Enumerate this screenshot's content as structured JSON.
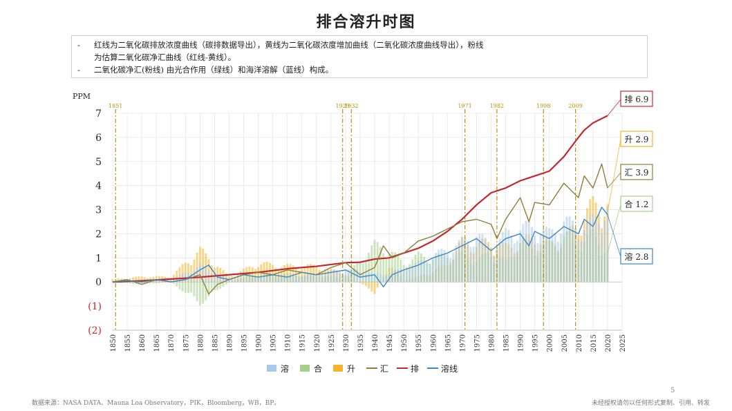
{
  "title": "排合溶升时图",
  "notes": [
    "红线为二氧化碳排放浓度曲线（碳排数据导出），黄线为二氧化碳浓度增加曲线（二氧化碳浓度曲线导出），粉线",
    "为估算二氧化碳净汇曲线（红线-黄线）。",
    "二氧化碳净汇(粉线) 由光合作用（绿线）和海洋溶解（蓝线）构成。"
  ],
  "note_bullets": [
    "-",
    "",
    "-"
  ],
  "footer_source": "数据来源：NASA DATA、Mauna Loa Observatory，PIK，Bloomberg，WB，BP。",
  "footer_copyright": "未经授权请勿以任何形式复制、引用、转发",
  "page_number": "5",
  "colors": {
    "red": "#c0282d",
    "yellow": "#f3b52a",
    "olive": "#8f7d3a",
    "green": "#a6cf8a",
    "blue_bar": "#a9c9e8",
    "blue_line": "#3b86c6",
    "event_line": "#b8920f",
    "negative_tick": "#c0282d"
  },
  "chart_data": {
    "type": "bar",
    "ylabel": "PPM",
    "ylim": [
      -2,
      7
    ],
    "xlim": [
      1850,
      2025
    ],
    "y_ticks": [
      "7",
      "6",
      "5",
      "4",
      "3",
      "2",
      "1",
      "0",
      "(1)",
      "(2)"
    ],
    "y_tick_values": [
      7,
      6,
      5,
      4,
      3,
      2,
      1,
      0,
      -1,
      -2
    ],
    "x_ticks": [
      "1850",
      "1855",
      "1860",
      "1865",
      "1870",
      "1875",
      "1880",
      "1885",
      "1890",
      "1895",
      "1900",
      "1905",
      "1910",
      "1915",
      "1920",
      "1925",
      "1930",
      "1935",
      "1940",
      "1945",
      "1950",
      "1955",
      "1960",
      "1965",
      "1970",
      "1975",
      "1980",
      "1985",
      "1990",
      "1995",
      "2000",
      "2005",
      "2010",
      "2015",
      "2020",
      "2025"
    ],
    "grid": true,
    "legend_position": "bottom",
    "legend": [
      {
        "label": "溶",
        "kind": "bar",
        "color": "#a9c9e8"
      },
      {
        "label": "合",
        "kind": "bar",
        "color": "#a6cf8a"
      },
      {
        "label": "升",
        "kind": "bar",
        "color": "#f3b52a"
      },
      {
        "label": "汇",
        "kind": "line",
        "color": "#8f7d3a"
      },
      {
        "label": "排",
        "kind": "line",
        "color": "#c0282d"
      },
      {
        "label": "溶线",
        "kind": "line",
        "color": "#3b86c6"
      }
    ],
    "event_years": [
      1851,
      1929,
      1932,
      1971,
      1982,
      1998,
      2009
    ],
    "event_labels": [
      "1851",
      "1929",
      "1932",
      "1971",
      "1982",
      "1998",
      "2009"
    ],
    "end_labels": [
      {
        "text": "排 6.9",
        "value": 6.9,
        "color": "#c0282d"
      },
      {
        "text": "升 2.9",
        "value": 2.9,
        "color": "#f3b52a"
      },
      {
        "text": "汇 3.9",
        "value": 3.9,
        "color": "#8f7d3a"
      },
      {
        "text": "合 1.2",
        "value": 1.2,
        "color": "#a6cf8a"
      },
      {
        "text": "溶 2.8",
        "value": 2.8,
        "color": "#3b86c6"
      }
    ],
    "series": [
      {
        "name": "排",
        "type": "line",
        "color": "#c0282d",
        "x": [
          1850,
          1860,
          1870,
          1880,
          1890,
          1900,
          1910,
          1920,
          1930,
          1935,
          1940,
          1945,
          1950,
          1955,
          1960,
          1965,
          1970,
          1975,
          1980,
          1985,
          1990,
          1995,
          2000,
          2005,
          2010,
          2012,
          2015,
          2020
        ],
        "y": [
          0.0,
          0.05,
          0.12,
          0.2,
          0.3,
          0.4,
          0.55,
          0.65,
          0.8,
          0.82,
          0.95,
          1.0,
          1.2,
          1.4,
          1.7,
          2.1,
          2.6,
          3.2,
          3.7,
          3.9,
          4.2,
          4.4,
          4.6,
          5.2,
          6.0,
          6.3,
          6.6,
          6.9
        ]
      },
      {
        "name": "汇",
        "type": "line",
        "color": "#8f7d3a",
        "x": [
          1850,
          1855,
          1860,
          1865,
          1870,
          1875,
          1880,
          1883,
          1886,
          1890,
          1895,
          1900,
          1905,
          1910,
          1915,
          1920,
          1925,
          1930,
          1935,
          1940,
          1943,
          1946,
          1950,
          1955,
          1960,
          1965,
          1970,
          1975,
          1980,
          1982,
          1985,
          1990,
          1993,
          1995,
          2000,
          2005,
          2010,
          2012,
          2015,
          2018,
          2020
        ],
        "y": [
          0.0,
          0.1,
          -0.1,
          0.1,
          0.0,
          0.1,
          0.3,
          -0.5,
          -0.1,
          0.1,
          0.3,
          0.4,
          0.3,
          0.5,
          0.4,
          0.3,
          0.6,
          0.8,
          0.3,
          0.6,
          1.5,
          1.0,
          1.2,
          1.7,
          1.9,
          2.2,
          2.5,
          2.6,
          2.4,
          1.8,
          2.6,
          3.5,
          2.5,
          3.3,
          3.2,
          4.1,
          3.5,
          4.4,
          3.9,
          4.9,
          3.9
        ]
      },
      {
        "name": "溶线",
        "type": "line",
        "color": "#3b86c6",
        "x": [
          1850,
          1855,
          1860,
          1865,
          1870,
          1875,
          1880,
          1883,
          1886,
          1890,
          1895,
          1900,
          1905,
          1910,
          1915,
          1920,
          1925,
          1930,
          1935,
          1940,
          1943,
          1946,
          1950,
          1955,
          1960,
          1965,
          1970,
          1975,
          1980,
          1985,
          1990,
          1993,
          1995,
          2000,
          2005,
          2010,
          2012,
          2015,
          2018,
          2020
        ],
        "y": [
          0.0,
          0.05,
          0.0,
          0.1,
          0.0,
          0.1,
          0.5,
          0.7,
          0.2,
          0.1,
          0.3,
          0.2,
          0.3,
          0.2,
          0.4,
          0.3,
          0.4,
          0.5,
          0.2,
          0.3,
          -0.2,
          0.3,
          0.5,
          0.7,
          1.0,
          1.2,
          1.5,
          1.8,
          1.3,
          1.8,
          2.0,
          1.5,
          2.1,
          1.8,
          2.3,
          2.0,
          2.6,
          2.3,
          3.1,
          2.8
        ]
      }
    ],
    "bar_series": [
      {
        "name": "升",
        "color": "#f3b52a",
        "x": [
          1850,
          1860,
          1870,
          1880,
          1890,
          1900,
          1910,
          1920,
          1930,
          1940,
          1945,
          1950,
          1955,
          1960,
          1965,
          1970,
          1975,
          1980,
          1985,
          1990,
          1995,
          2000,
          2005,
          2010,
          2015,
          2020
        ],
        "y": [
          0.1,
          0.2,
          0.2,
          1.2,
          0.2,
          0.7,
          0.6,
          0.6,
          0.3,
          -0.4,
          0.6,
          0.1,
          0.2,
          0.4,
          0.7,
          1.5,
          1.4,
          1.5,
          1.3,
          1.5,
          1.7,
          1.4,
          1.6,
          2.2,
          2.9,
          2.9
        ]
      },
      {
        "name": "合",
        "color": "#a6cf8a",
        "x": [
          1850,
          1860,
          1870,
          1880,
          1890,
          1900,
          1910,
          1920,
          1930,
          1940,
          1945,
          1950,
          1955,
          1960,
          1965,
          1970,
          1975,
          1980,
          1985,
          1990,
          1995,
          2000,
          2005,
          2010,
          2015,
          2020
        ],
        "y": [
          0.0,
          -0.1,
          0.0,
          -0.8,
          0.0,
          0.3,
          0.3,
          0.2,
          0.2,
          1.4,
          1.2,
          0.7,
          1.0,
          0.9,
          1.0,
          1.0,
          0.8,
          1.1,
          0.7,
          1.5,
          1.2,
          1.4,
          1.8,
          1.5,
          1.8,
          1.2
        ]
      },
      {
        "name": "溶",
        "color": "#a9c9e8",
        "x": [
          1850,
          1860,
          1870,
          1880,
          1890,
          1900,
          1910,
          1920,
          1930,
          1940,
          1945,
          1950,
          1955,
          1960,
          1965,
          1970,
          1975,
          1980,
          1985,
          1990,
          1995,
          2000,
          2005,
          2010,
          2015,
          2020
        ],
        "y": [
          0.0,
          0.0,
          0.1,
          0.6,
          0.1,
          0.2,
          0.2,
          0.3,
          0.5,
          0.3,
          0.3,
          0.5,
          0.7,
          1.0,
          1.2,
          1.5,
          1.8,
          1.3,
          1.8,
          2.0,
          2.1,
          1.8,
          2.3,
          2.0,
          2.3,
          2.8
        ]
      }
    ]
  }
}
